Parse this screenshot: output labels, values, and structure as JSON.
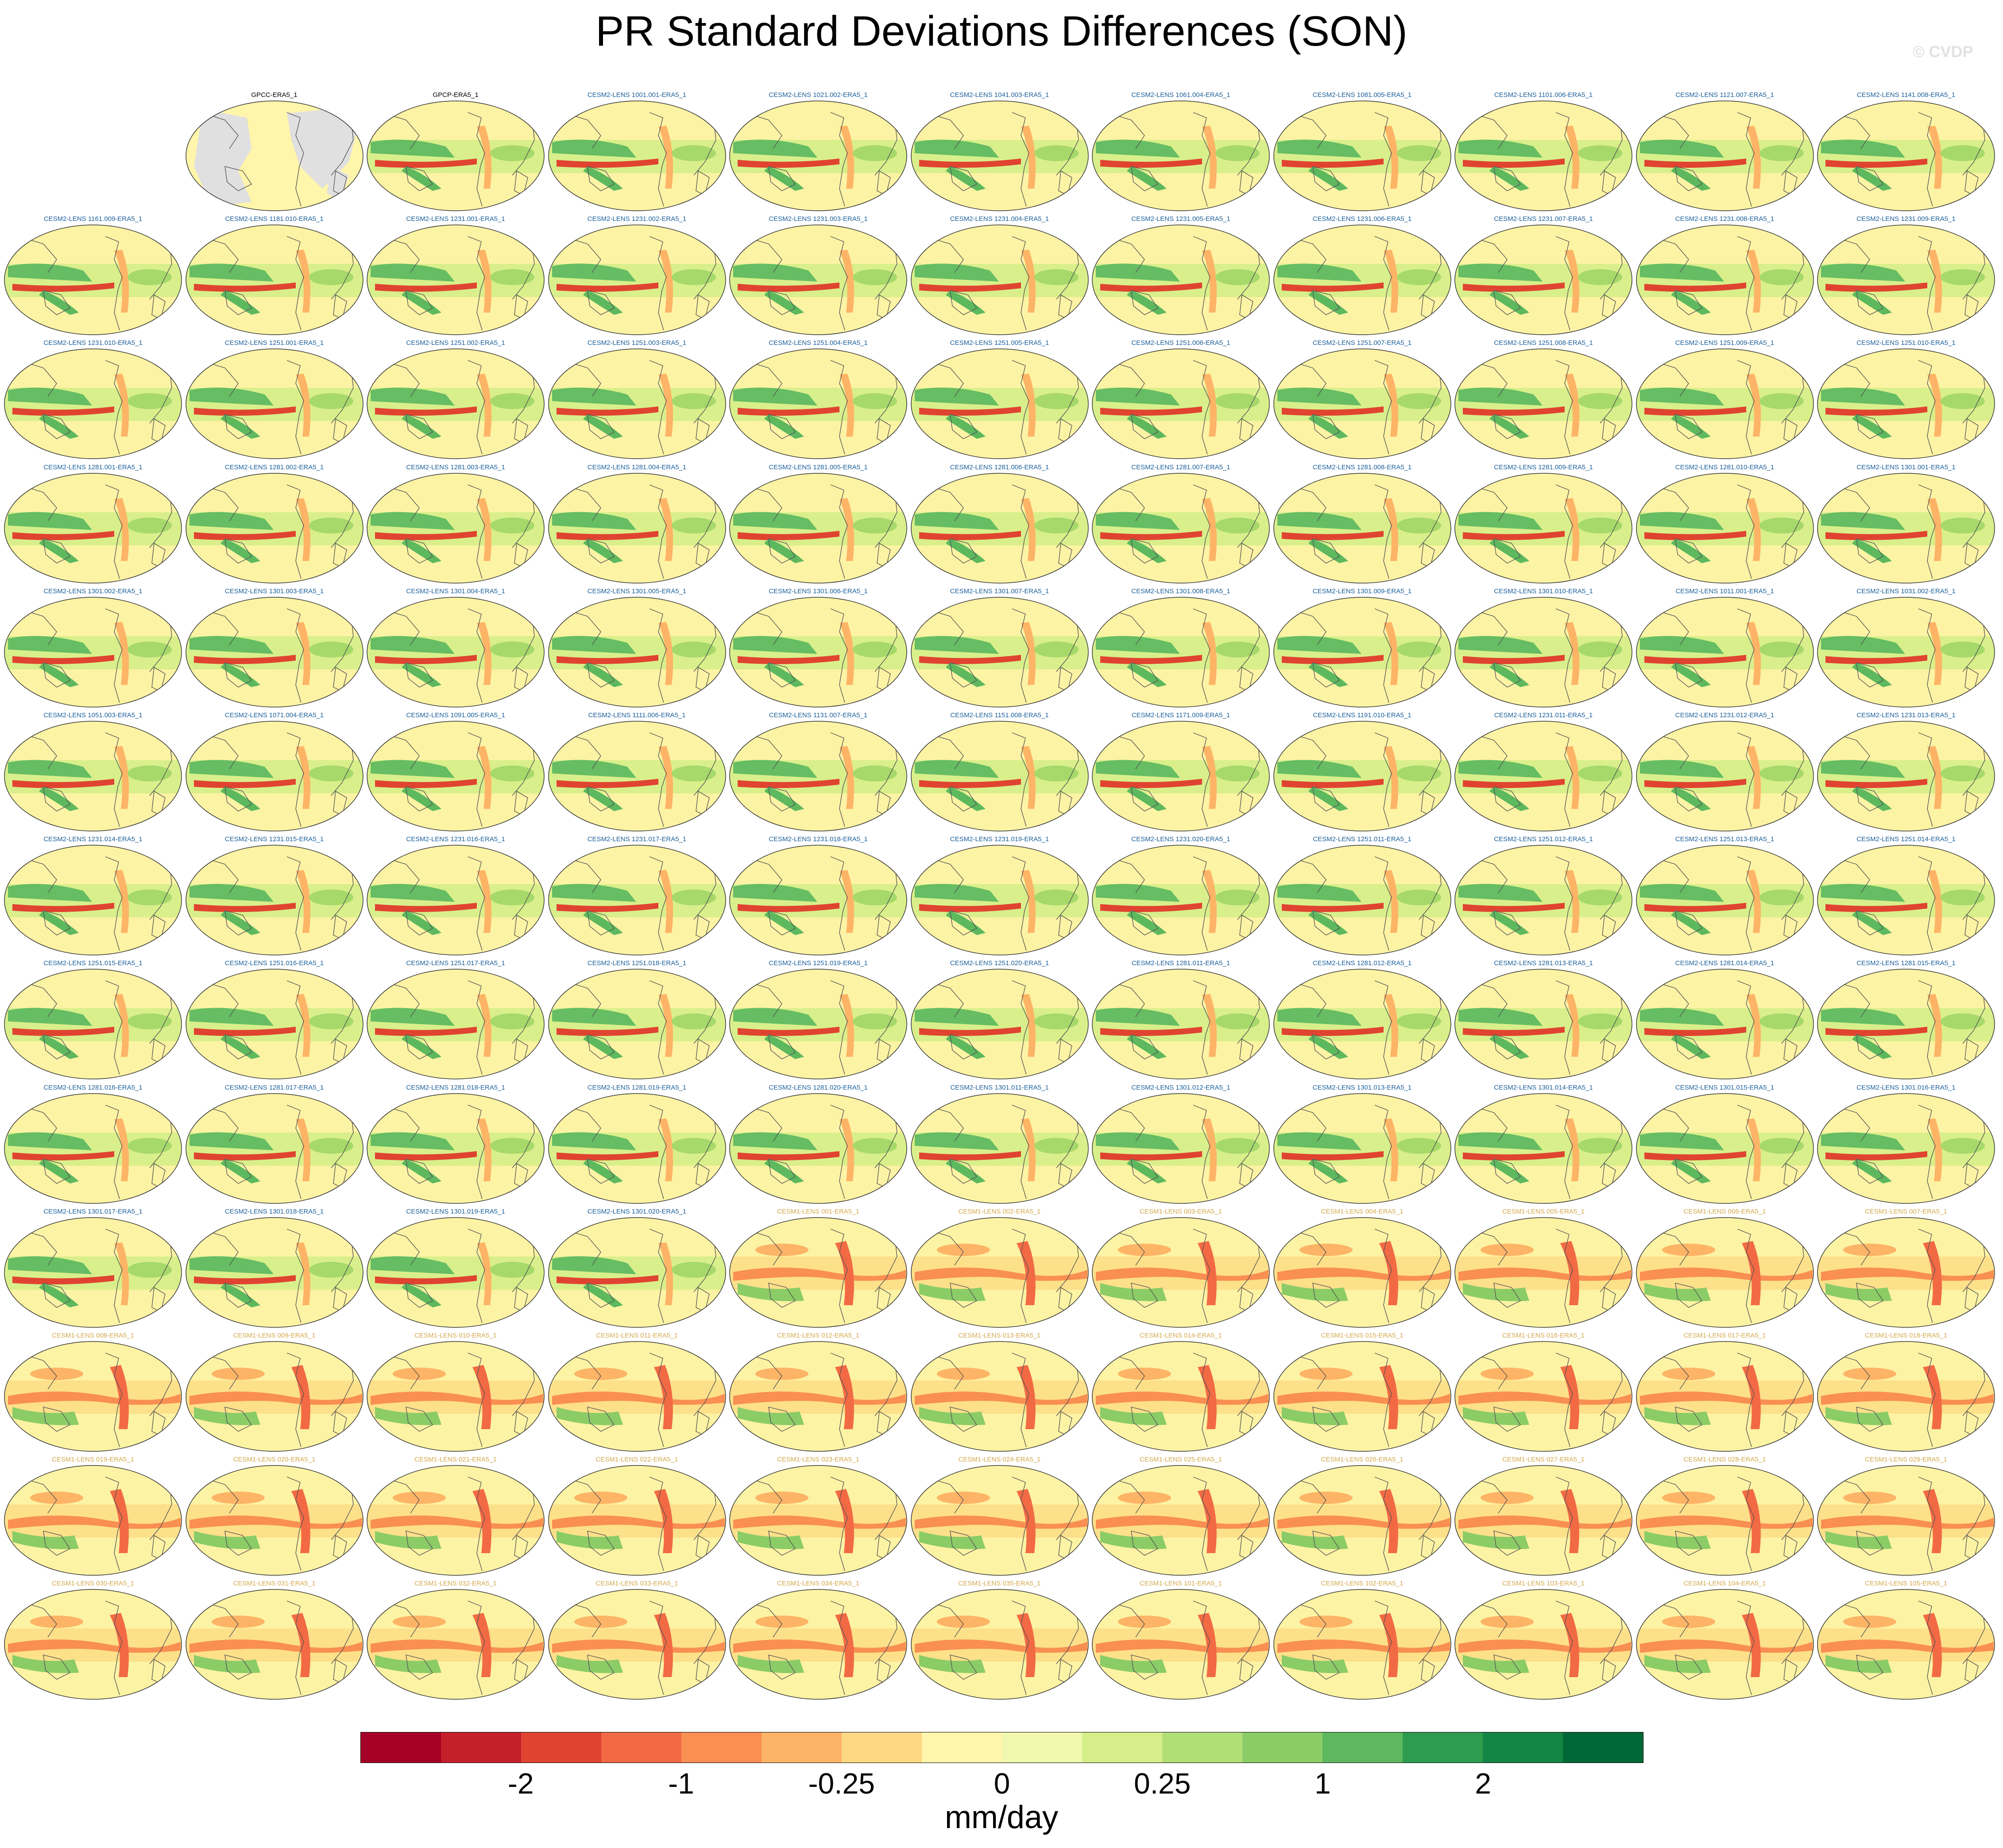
{
  "title": "PR Standard Deviations Differences (SON)",
  "watermark": "© CVDP",
  "colors": {
    "cesm2_title": "#1a5f9a",
    "cesm1_title": "#d4a84a",
    "obs_title": "#000000",
    "land_gray": "#e0e0e0",
    "coast": "#555555"
  },
  "panels": [
    {
      "label": "GPCC-ERA5_1",
      "group": "obs",
      "row": 0,
      "col": 1,
      "land": true
    },
    {
      "label": "GPCP-ERA5_1",
      "group": "obs",
      "row": 0,
      "col": 2
    },
    {
      "label": "CESM2-LENS 1001.001-ERA5_1",
      "group": "cesm2",
      "row": 0,
      "col": 3
    },
    {
      "label": "CESM2-LENS 1021.002-ERA5_1",
      "group": "cesm2",
      "row": 0,
      "col": 4
    },
    {
      "label": "CESM2-LENS 1041.003-ERA5_1",
      "group": "cesm2",
      "row": 0,
      "col": 5
    },
    {
      "label": "CESM2-LENS 1061.004-ERA5_1",
      "group": "cesm2",
      "row": 0,
      "col": 6
    },
    {
      "label": "CESM2-LENS 1081.005-ERA5_1",
      "group": "cesm2",
      "row": 0,
      "col": 7
    },
    {
      "label": "CESM2-LENS 1101.006-ERA5_1",
      "group": "cesm2",
      "row": 0,
      "col": 8
    },
    {
      "label": "CESM2-LENS 1121.007-ERA5_1",
      "group": "cesm2",
      "row": 0,
      "col": 9
    },
    {
      "label": "CESM2-LENS 1141.008-ERA5_1",
      "group": "cesm2",
      "row": 0,
      "col": 10
    },
    {
      "label": "CESM2-LENS 1161.009-ERA5_1",
      "group": "cesm2",
      "row": 1,
      "col": 0
    },
    {
      "label": "CESM2-LENS 1181.010-ERA5_1",
      "group": "cesm2",
      "row": 1,
      "col": 1
    },
    {
      "label": "CESM2-LENS 1231.001-ERA5_1",
      "group": "cesm2",
      "row": 1,
      "col": 2
    },
    {
      "label": "CESM2-LENS 1231.002-ERA5_1",
      "group": "cesm2",
      "row": 1,
      "col": 3
    },
    {
      "label": "CESM2-LENS 1231.003-ERA5_1",
      "group": "cesm2",
      "row": 1,
      "col": 4
    },
    {
      "label": "CESM2-LENS 1231.004-ERA5_1",
      "group": "cesm2",
      "row": 1,
      "col": 5
    },
    {
      "label": "CESM2-LENS 1231.005-ERA5_1",
      "group": "cesm2",
      "row": 1,
      "col": 6
    },
    {
      "label": "CESM2-LENS 1231.006-ERA5_1",
      "group": "cesm2",
      "row": 1,
      "col": 7
    },
    {
      "label": "CESM2-LENS 1231.007-ERA5_1",
      "group": "cesm2",
      "row": 1,
      "col": 8
    },
    {
      "label": "CESM2-LENS 1231.008-ERA5_1",
      "group": "cesm2",
      "row": 1,
      "col": 9
    },
    {
      "label": "CESM2-LENS 1231.009-ERA5_1",
      "group": "cesm2",
      "row": 1,
      "col": 10
    },
    {
      "label": "CESM2-LENS 1231.010-ERA5_1",
      "group": "cesm2",
      "row": 2,
      "col": 0
    },
    {
      "label": "CESM2-LENS 1251.001-ERA5_1",
      "group": "cesm2",
      "row": 2,
      "col": 1
    },
    {
      "label": "CESM2-LENS 1251.002-ERA5_1",
      "group": "cesm2",
      "row": 2,
      "col": 2
    },
    {
      "label": "CESM2-LENS 1251.003-ERA5_1",
      "group": "cesm2",
      "row": 2,
      "col": 3
    },
    {
      "label": "CESM2-LENS 1251.004-ERA5_1",
      "group": "cesm2",
      "row": 2,
      "col": 4
    },
    {
      "label": "CESM2-LENS 1251.005-ERA5_1",
      "group": "cesm2",
      "row": 2,
      "col": 5
    },
    {
      "label": "CESM2-LENS 1251.006-ERA5_1",
      "group": "cesm2",
      "row": 2,
      "col": 6
    },
    {
      "label": "CESM2-LENS 1251.007-ERA5_1",
      "group": "cesm2",
      "row": 2,
      "col": 7
    },
    {
      "label": "CESM2-LENS 1251.008-ERA5_1",
      "group": "cesm2",
      "row": 2,
      "col": 8
    },
    {
      "label": "CESM2-LENS 1251.009-ERA5_1",
      "group": "cesm2",
      "row": 2,
      "col": 9
    },
    {
      "label": "CESM2-LENS 1251.010-ERA5_1",
      "group": "cesm2",
      "row": 2,
      "col": 10
    },
    {
      "label": "CESM2-LENS 1281.001-ERA5_1",
      "group": "cesm2",
      "row": 3,
      "col": 0
    },
    {
      "label": "CESM2-LENS 1281.002-ERA5_1",
      "group": "cesm2",
      "row": 3,
      "col": 1
    },
    {
      "label": "CESM2-LENS 1281.003-ERA5_1",
      "group": "cesm2",
      "row": 3,
      "col": 2
    },
    {
      "label": "CESM2-LENS 1281.004-ERA5_1",
      "group": "cesm2",
      "row": 3,
      "col": 3
    },
    {
      "label": "CESM2-LENS 1281.005-ERA5_1",
      "group": "cesm2",
      "row": 3,
      "col": 4
    },
    {
      "label": "CESM2-LENS 1281.006-ERA5_1",
      "group": "cesm2",
      "row": 3,
      "col": 5
    },
    {
      "label": "CESM2-LENS 1281.007-ERA5_1",
      "group": "cesm2",
      "row": 3,
      "col": 6
    },
    {
      "label": "CESM2-LENS 1281.008-ERA5_1",
      "group": "cesm2",
      "row": 3,
      "col": 7
    },
    {
      "label": "CESM2-LENS 1281.009-ERA5_1",
      "group": "cesm2",
      "row": 3,
      "col": 8
    },
    {
      "label": "CESM2-LENS 1281.010-ERA5_1",
      "group": "cesm2",
      "row": 3,
      "col": 9
    },
    {
      "label": "CESM2-LENS 1301.001-ERA5_1",
      "group": "cesm2",
      "row": 3,
      "col": 10
    },
    {
      "label": "CESM2-LENS 1301.002-ERA5_1",
      "group": "cesm2",
      "row": 4,
      "col": 0
    },
    {
      "label": "CESM2-LENS 1301.003-ERA5_1",
      "group": "cesm2",
      "row": 4,
      "col": 1
    },
    {
      "label": "CESM2-LENS 1301.004-ERA5_1",
      "group": "cesm2",
      "row": 4,
      "col": 2
    },
    {
      "label": "CESM2-LENS 1301.005-ERA5_1",
      "group": "cesm2",
      "row": 4,
      "col": 3
    },
    {
      "label": "CESM2-LENS 1301.006-ERA5_1",
      "group": "cesm2",
      "row": 4,
      "col": 4
    },
    {
      "label": "CESM2-LENS 1301.007-ERA5_1",
      "group": "cesm2",
      "row": 4,
      "col": 5
    },
    {
      "label": "CESM2-LENS 1301.008-ERA5_1",
      "group": "cesm2",
      "row": 4,
      "col": 6
    },
    {
      "label": "CESM2-LENS 1301.009-ERA5_1",
      "group": "cesm2",
      "row": 4,
      "col": 7
    },
    {
      "label": "CESM2-LENS 1301.010-ERA5_1",
      "group": "cesm2",
      "row": 4,
      "col": 8
    },
    {
      "label": "CESM2-LENS 1011.001-ERA5_1",
      "group": "cesm2",
      "row": 4,
      "col": 9
    },
    {
      "label": "CESM2-LENS 1031.002-ERA5_1",
      "group": "cesm2",
      "row": 4,
      "col": 10
    },
    {
      "label": "CESM2-LENS 1051.003-ERA5_1",
      "group": "cesm2",
      "row": 5,
      "col": 0
    },
    {
      "label": "CESM2-LENS 1071.004-ERA5_1",
      "group": "cesm2",
      "row": 5,
      "col": 1
    },
    {
      "label": "CESM2-LENS 1091.005-ERA5_1",
      "group": "cesm2",
      "row": 5,
      "col": 2
    },
    {
      "label": "CESM2-LENS 1111.006-ERA5_1",
      "group": "cesm2",
      "row": 5,
      "col": 3
    },
    {
      "label": "CESM2-LENS 1131.007-ERA5_1",
      "group": "cesm2",
      "row": 5,
      "col": 4
    },
    {
      "label": "CESM2-LENS 1151.008-ERA5_1",
      "group": "cesm2",
      "row": 5,
      "col": 5
    },
    {
      "label": "CESM2-LENS 1171.009-ERA5_1",
      "group": "cesm2",
      "row": 5,
      "col": 6
    },
    {
      "label": "CESM2-LENS 1191.010-ERA5_1",
      "group": "cesm2",
      "row": 5,
      "col": 7
    },
    {
      "label": "CESM2-LENS 1231.011-ERA5_1",
      "group": "cesm2",
      "row": 5,
      "col": 8
    },
    {
      "label": "CESM2-LENS 1231.012-ERA5_1",
      "group": "cesm2",
      "row": 5,
      "col": 9
    },
    {
      "label": "CESM2-LENS 1231.013-ERA5_1",
      "group": "cesm2",
      "row": 5,
      "col": 10
    },
    {
      "label": "CESM2-LENS 1231.014-ERA5_1",
      "group": "cesm2",
      "row": 6,
      "col": 0
    },
    {
      "label": "CESM2-LENS 1231.015-ERA5_1",
      "group": "cesm2",
      "row": 6,
      "col": 1
    },
    {
      "label": "CESM2-LENS 1231.016-ERA5_1",
      "group": "cesm2",
      "row": 6,
      "col": 2
    },
    {
      "label": "CESM2-LENS 1231.017-ERA5_1",
      "group": "cesm2",
      "row": 6,
      "col": 3
    },
    {
      "label": "CESM2-LENS 1231.018-ERA5_1",
      "group": "cesm2",
      "row": 6,
      "col": 4
    },
    {
      "label": "CESM2-LENS 1231.019-ERA5_1",
      "group": "cesm2",
      "row": 6,
      "col": 5
    },
    {
      "label": "CESM2-LENS 1231.020-ERA5_1",
      "group": "cesm2",
      "row": 6,
      "col": 6
    },
    {
      "label": "CESM2-LENS 1251.011-ERA5_1",
      "group": "cesm2",
      "row": 6,
      "col": 7
    },
    {
      "label": "CESM2-LENS 1251.012-ERA5_1",
      "group": "cesm2",
      "row": 6,
      "col": 8
    },
    {
      "label": "CESM2-LENS 1251.013-ERA5_1",
      "group": "cesm2",
      "row": 6,
      "col": 9
    },
    {
      "label": "CESM2-LENS 1251.014-ERA5_1",
      "group": "cesm2",
      "row": 6,
      "col": 10
    },
    {
      "label": "CESM2-LENS 1251.015-ERA5_1",
      "group": "cesm2",
      "row": 7,
      "col": 0
    },
    {
      "label": "CESM2-LENS 1251.016-ERA5_1",
      "group": "cesm2",
      "row": 7,
      "col": 1
    },
    {
      "label": "CESM2-LENS 1251.017-ERA5_1",
      "group": "cesm2",
      "row": 7,
      "col": 2
    },
    {
      "label": "CESM2-LENS 1251.018-ERA5_1",
      "group": "cesm2",
      "row": 7,
      "col": 3
    },
    {
      "label": "CESM2-LENS 1251.019-ERA5_1",
      "group": "cesm2",
      "row": 7,
      "col": 4
    },
    {
      "label": "CESM2-LENS 1251.020-ERA5_1",
      "group": "cesm2",
      "row": 7,
      "col": 5
    },
    {
      "label": "CESM2-LENS 1281.011-ERA5_1",
      "group": "cesm2",
      "row": 7,
      "col": 6
    },
    {
      "label": "CESM2-LENS 1281.012-ERA5_1",
      "group": "cesm2",
      "row": 7,
      "col": 7
    },
    {
      "label": "CESM2-LENS 1281.013-ERA5_1",
      "group": "cesm2",
      "row": 7,
      "col": 8
    },
    {
      "label": "CESM2-LENS 1281.014-ERA5_1",
      "group": "cesm2",
      "row": 7,
      "col": 9
    },
    {
      "label": "CESM2-LENS 1281.015-ERA5_1",
      "group": "cesm2",
      "row": 7,
      "col": 10
    },
    {
      "label": "CESM2-LENS 1281.016-ERA5_1",
      "group": "cesm2",
      "row": 8,
      "col": 0
    },
    {
      "label": "CESM2-LENS 1281.017-ERA5_1",
      "group": "cesm2",
      "row": 8,
      "col": 1
    },
    {
      "label": "CESM2-LENS 1281.018-ERA5_1",
      "group": "cesm2",
      "row": 8,
      "col": 2
    },
    {
      "label": "CESM2-LENS 1281.019-ERA5_1",
      "group": "cesm2",
      "row": 8,
      "col": 3
    },
    {
      "label": "CESM2-LENS 1281.020-ERA5_1",
      "group": "cesm2",
      "row": 8,
      "col": 4
    },
    {
      "label": "CESM2-LENS 1301.011-ERA5_1",
      "group": "cesm2",
      "row": 8,
      "col": 5
    },
    {
      "label": "CESM2-LENS 1301.012-ERA5_1",
      "group": "cesm2",
      "row": 8,
      "col": 6
    },
    {
      "label": "CESM2-LENS 1301.013-ERA5_1",
      "group": "cesm2",
      "row": 8,
      "col": 7
    },
    {
      "label": "CESM2-LENS 1301.014-ERA5_1",
      "group": "cesm2",
      "row": 8,
      "col": 8
    },
    {
      "label": "CESM2-LENS 1301.015-ERA5_1",
      "group": "cesm2",
      "row": 8,
      "col": 9
    },
    {
      "label": "CESM2-LENS 1301.016-ERA5_1",
      "group": "cesm2",
      "row": 8,
      "col": 10
    },
    {
      "label": "CESM2-LENS 1301.017-ERA5_1",
      "group": "cesm2",
      "row": 9,
      "col": 0
    },
    {
      "label": "CESM2-LENS 1301.018-ERA5_1",
      "group": "cesm2",
      "row": 9,
      "col": 1
    },
    {
      "label": "CESM2-LENS 1301.019-ERA5_1",
      "group": "cesm2",
      "row": 9,
      "col": 2
    },
    {
      "label": "CESM2-LENS 1301.020-ERA5_1",
      "group": "cesm2",
      "row": 9,
      "col": 3
    },
    {
      "label": "CESM1-LENS 001-ERA5_1",
      "group": "cesm1",
      "row": 9,
      "col": 4
    },
    {
      "label": "CESM1-LENS 002-ERA5_1",
      "group": "cesm1",
      "row": 9,
      "col": 5
    },
    {
      "label": "CESM1-LENS 003-ERA5_1",
      "group": "cesm1",
      "row": 9,
      "col": 6
    },
    {
      "label": "CESM1-LENS 004-ERA5_1",
      "group": "cesm1",
      "row": 9,
      "col": 7
    },
    {
      "label": "CESM1-LENS 005-ERA5_1",
      "group": "cesm1",
      "row": 9,
      "col": 8
    },
    {
      "label": "CESM1-LENS 006-ERA5_1",
      "group": "cesm1",
      "row": 9,
      "col": 9
    },
    {
      "label": "CESM1-LENS 007-ERA5_1",
      "group": "cesm1",
      "row": 9,
      "col": 10
    },
    {
      "label": "CESM1-LENS 008-ERA5_1",
      "group": "cesm1",
      "row": 10,
      "col": 0
    },
    {
      "label": "CESM1-LENS 009-ERA5_1",
      "group": "cesm1",
      "row": 10,
      "col": 1
    },
    {
      "label": "CESM1-LENS 010-ERA5_1",
      "group": "cesm1",
      "row": 10,
      "col": 2
    },
    {
      "label": "CESM1-LENS 011-ERA5_1",
      "group": "cesm1",
      "row": 10,
      "col": 3
    },
    {
      "label": "CESM1-LENS 012-ERA5_1",
      "group": "cesm1",
      "row": 10,
      "col": 4
    },
    {
      "label": "CESM1-LENS 013-ERA5_1",
      "group": "cesm1",
      "row": 10,
      "col": 5
    },
    {
      "label": "CESM1-LENS 014-ERA5_1",
      "group": "cesm1",
      "row": 10,
      "col": 6
    },
    {
      "label": "CESM1-LENS 015-ERA5_1",
      "group": "cesm1",
      "row": 10,
      "col": 7
    },
    {
      "label": "CESM1-LENS 016-ERA5_1",
      "group": "cesm1",
      "row": 10,
      "col": 8
    },
    {
      "label": "CESM1-LENS 017-ERA5_1",
      "group": "cesm1",
      "row": 10,
      "col": 9
    },
    {
      "label": "CESM1-LENS 018-ERA5_1",
      "group": "cesm1",
      "row": 10,
      "col": 10
    },
    {
      "label": "CESM1-LENS 019-ERA5_1",
      "group": "cesm1",
      "row": 11,
      "col": 0
    },
    {
      "label": "CESM1-LENS 020-ERA5_1",
      "group": "cesm1",
      "row": 11,
      "col": 1
    },
    {
      "label": "CESM1-LENS 021-ERA5_1",
      "group": "cesm1",
      "row": 11,
      "col": 2
    },
    {
      "label": "CESM1-LENS 022-ERA5_1",
      "group": "cesm1",
      "row": 11,
      "col": 3
    },
    {
      "label": "CESM1-LENS 023-ERA5_1",
      "group": "cesm1",
      "row": 11,
      "col": 4
    },
    {
      "label": "CESM1-LENS 024-ERA5_1",
      "group": "cesm1",
      "row": 11,
      "col": 5
    },
    {
      "label": "CESM1-LENS 025-ERA5_1",
      "group": "cesm1",
      "row": 11,
      "col": 6
    },
    {
      "label": "CESM1-LENS 026-ERA5_1",
      "group": "cesm1",
      "row": 11,
      "col": 7
    },
    {
      "label": "CESM1-LENS 027-ERA5_1",
      "group": "cesm1",
      "row": 11,
      "col": 8
    },
    {
      "label": "CESM1-LENS 028-ERA5_1",
      "group": "cesm1",
      "row": 11,
      "col": 9
    },
    {
      "label": "CESM1-LENS 029-ERA5_1",
      "group": "cesm1",
      "row": 11,
      "col": 10
    },
    {
      "label": "CESM1-LENS 030-ERA5_1",
      "group": "cesm1",
      "row": 12,
      "col": 0
    },
    {
      "label": "CESM1-LENS 031-ERA5_1",
      "group": "cesm1",
      "row": 12,
      "col": 1
    },
    {
      "label": "CESM1-LENS 032-ERA5_1",
      "group": "cesm1",
      "row": 12,
      "col": 2
    },
    {
      "label": "CESM1-LENS 033-ERA5_1",
      "group": "cesm1",
      "row": 12,
      "col": 3
    },
    {
      "label": "CESM1-LENS 034-ERA5_1",
      "group": "cesm1",
      "row": 12,
      "col": 4
    },
    {
      "label": "CESM1-LENS 035-ERA5_1",
      "group": "cesm1",
      "row": 12,
      "col": 5
    },
    {
      "label": "CESM1-LENS 101-ERA5_1",
      "group": "cesm1",
      "row": 12,
      "col": 6
    },
    {
      "label": "CESM1-LENS 102-ERA5_1",
      "group": "cesm1",
      "row": 12,
      "col": 7
    },
    {
      "label": "CESM1-LENS 103-ERA5_1",
      "group": "cesm1",
      "row": 12,
      "col": 8
    },
    {
      "label": "CESM1-LENS 104-ERA5_1",
      "group": "cesm1",
      "row": 12,
      "col": 9
    },
    {
      "label": "CESM1-LENS 105-ERA5_1",
      "group": "cesm1",
      "row": 12,
      "col": 10
    }
  ],
  "colorbar": {
    "colors": [
      "#a50026",
      "#c4202b",
      "#e04430",
      "#f26a44",
      "#f98f52",
      "#fdb466",
      "#fed883",
      "#fff5ab",
      "#eff8ae",
      "#d6ee8a",
      "#b2de76",
      "#8bcc67",
      "#5db85e",
      "#2d9c4f",
      "#138544",
      "#006837"
    ],
    "tick_labels": [
      {
        "label": "-2",
        "boundary": 2
      },
      {
        "label": "-1",
        "boundary": 4
      },
      {
        "label": "-0.25",
        "boundary": 6
      },
      {
        "label": "0",
        "boundary": 8
      },
      {
        "label": "0.25",
        "boundary": 10
      },
      {
        "label": "1",
        "boundary": 12
      },
      {
        "label": "2",
        "boundary": 14
      }
    ],
    "units": "mm/day"
  }
}
